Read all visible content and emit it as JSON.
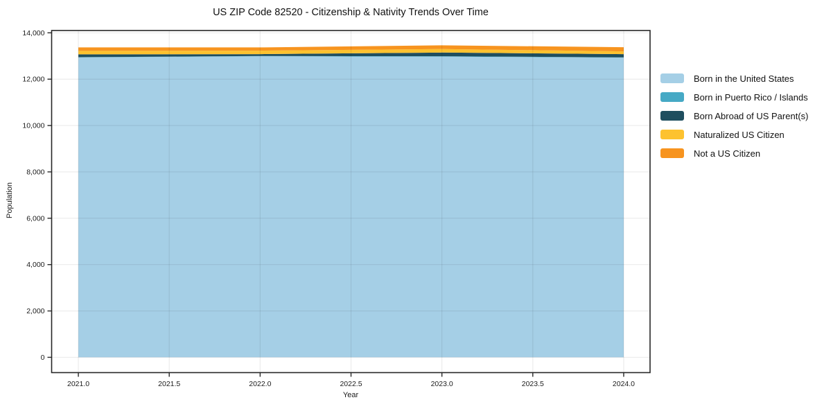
{
  "chart_data": {
    "type": "area",
    "stacked": true,
    "title": "US ZIP Code 82520 - Citizenship & Nativity Trends Over Time",
    "xlabel": "Year",
    "ylabel": "Population",
    "x": [
      2021,
      2022,
      2023,
      2024
    ],
    "series": [
      {
        "name": "Born in the United States",
        "color": "#a5cfe6",
        "values": [
          12940,
          12990,
          12970,
          12930
        ]
      },
      {
        "name": "Born in Puerto Rico / Islands",
        "color": "#46a9c5",
        "values": [
          10,
          10,
          20,
          10
        ]
      },
      {
        "name": "Born Abroad of US Parent(s)",
        "color": "#1f4e5f",
        "values": [
          120,
          80,
          160,
          140
        ]
      },
      {
        "name": "Naturalized US Citizen",
        "color": "#fdc22f",
        "values": [
          150,
          150,
          150,
          120
        ]
      },
      {
        "name": "Not a US Citizen",
        "color": "#f7941f",
        "values": [
          150,
          140,
          160,
          180
        ]
      }
    ],
    "x_ticks": [
      2021.0,
      2021.5,
      2022.0,
      2022.5,
      2023.0,
      2023.5,
      2024.0
    ],
    "x_tick_labels": [
      "2021.0",
      "2021.5",
      "2022.0",
      "2022.5",
      "2023.0",
      "2023.5",
      "2024.0"
    ],
    "y_ticks": [
      0,
      2000,
      4000,
      6000,
      8000,
      10000,
      12000,
      14000
    ],
    "y_tick_labels": [
      "0",
      "2,000",
      "4,000",
      "6,000",
      "8,000",
      "10,000",
      "12,000",
      "14,000"
    ],
    "xlim": [
      2020.853,
      2024.145
    ],
    "ylim": [
      -660,
      14100
    ],
    "grid": true,
    "legend_position": "right",
    "axis_color": "#262626",
    "grid_color": "rgba(0,0,0,0.08)"
  }
}
